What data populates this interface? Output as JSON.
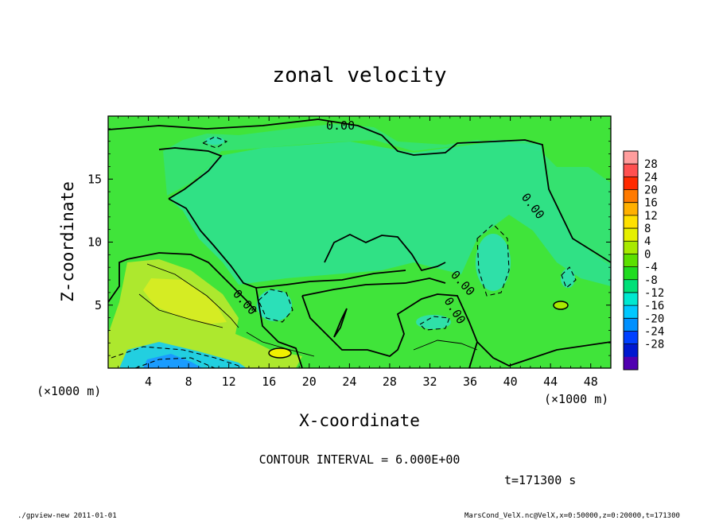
{
  "chart_data": {
    "type": "heatmap",
    "title": "zonal velocity",
    "xlabel": "X-coordinate",
    "ylabel": "Z-coordinate",
    "x_unit": "(×1000 m)",
    "y_unit": "(×1000 m)",
    "x_ticks": [
      4,
      8,
      12,
      16,
      20,
      24,
      28,
      32,
      36,
      40,
      44,
      48
    ],
    "y_ticks": [
      5,
      10,
      15
    ],
    "xlim": [
      0,
      50
    ],
    "ylim": [
      0,
      20
    ],
    "colorbar": {
      "levels": [
        28,
        24,
        20,
        16,
        12,
        8,
        4,
        0,
        -4,
        -8,
        -12,
        -16,
        -20,
        -24,
        -28
      ],
      "colors": [
        "#ff9d9d",
        "#ff5050",
        "#ff2a00",
        "#ff7a00",
        "#ffb000",
        "#ffe000",
        "#e6f000",
        "#a8ea00",
        "#5ce000",
        "#20dc20",
        "#00e078",
        "#00e8d0",
        "#00c8ff",
        "#0090ff",
        "#0040ff",
        "#0018d0",
        "#5000b0"
      ]
    },
    "contour_label": "0.00",
    "contour_interval_text": "CONTOUR INTERVAL = 6.000E+00",
    "time_text": "t=171300 s",
    "footer_left": "./gpview-new  2011-01-01",
    "footer_right": "MarsCond_VelX.nc@VelX,x=0:50000,z=0:20000,t=171300"
  },
  "colors": {
    "background_field": "#3ee63a",
    "positive_area": "#c8ea2a",
    "negative_area": "#25e28a",
    "strong_negative": "#1aa0ff"
  }
}
